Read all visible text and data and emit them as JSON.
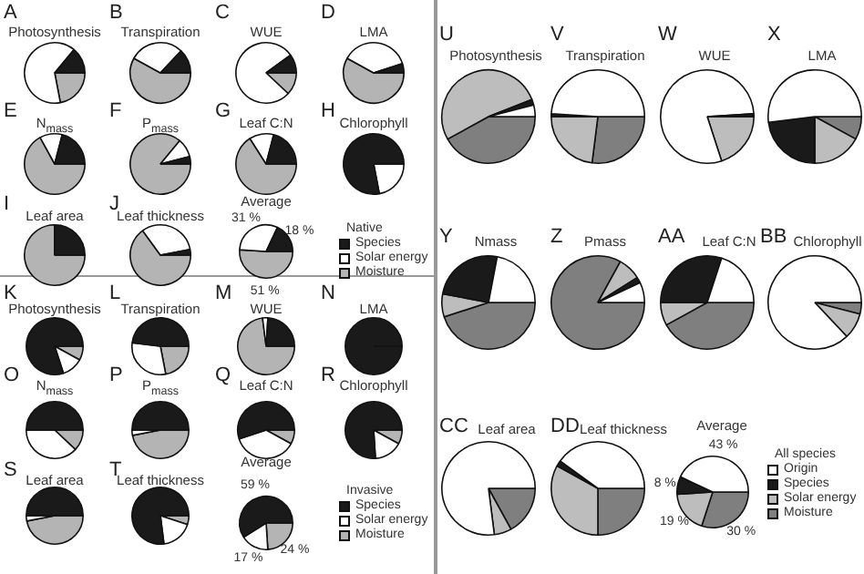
{
  "chart_data": [
    {
      "type": "pie",
      "title": "Photosynthesis",
      "annotations": [
        "A"
      ],
      "categories": [
        null,
        null,
        null
      ],
      "values": [
        22,
        64,
        14
      ],
      "colors": [
        "#b4b4b4",
        "#ffffff",
        "#1a1a1a"
      ]
    },
    {
      "type": "pie",
      "title": "Transpiration",
      "annotations": [
        "B"
      ],
      "categories": [
        null,
        null,
        null
      ],
      "values": [
        58,
        29,
        13
      ],
      "colors": [
        "#b4b4b4",
        "#ffffff",
        "#1a1a1a"
      ]
    },
    {
      "type": "pie",
      "title": "WUE",
      "annotations": [
        "C"
      ],
      "categories": [
        null,
        null,
        null
      ],
      "values": [
        12,
        78,
        10
      ],
      "colors": [
        "#b4b4b4",
        "#ffffff",
        "#1a1a1a"
      ]
    },
    {
      "type": "pie",
      "title": "LMA",
      "annotations": [
        "D"
      ],
      "categories": [
        null,
        null,
        null
      ],
      "values": [
        58,
        37,
        5
      ],
      "colors": [
        "#b4b4b4",
        "#ffffff",
        "#1a1a1a"
      ]
    },
    {
      "type": "pie",
      "title": "N$_{mass}$",
      "annotations": [
        "E"
      ],
      "categories": [
        null,
        null,
        null
      ],
      "values": [
        67,
        12,
        21
      ],
      "colors": [
        "#b4b4b4",
        "#ffffff",
        "#1a1a1a"
      ]
    },
    {
      "type": "pie",
      "title": "P$_{mass}$",
      "annotations": [
        "F"
      ],
      "categories": [
        null,
        null,
        null
      ],
      "values": [
        86,
        10,
        4
      ],
      "colors": [
        "#b4b4b4",
        "#ffffff",
        "#1a1a1a"
      ]
    },
    {
      "type": "pie",
      "title": "Leaf C:N",
      "annotations": [
        "G"
      ],
      "categories": [
        null,
        null,
        null
      ],
      "values": [
        66,
        13,
        21
      ],
      "colors": [
        "#b4b4b4",
        "#ffffff",
        "#1a1a1a"
      ]
    },
    {
      "type": "pie",
      "title": "Chlorophyll",
      "annotations": [
        "H"
      ],
      "categories": [
        null,
        null
      ],
      "values": [
        22,
        78
      ],
      "colors": [
        "#ffffff",
        "#1a1a1a"
      ]
    },
    {
      "type": "pie",
      "title": "Leaf area",
      "annotations": [
        "I"
      ],
      "categories": [
        null,
        null
      ],
      "values": [
        75,
        25
      ],
      "colors": [
        "#b4b4b4",
        "#1a1a1a"
      ]
    },
    {
      "type": "pie",
      "title": "Leaf thickness",
      "annotations": [
        "J"
      ],
      "categories": [
        null,
        null,
        null
      ],
      "values": [
        65,
        32,
        3
      ],
      "colors": [
        "#b4b4b4",
        "#ffffff",
        "#1a1a1a"
      ]
    },
    {
      "type": "pie",
      "title": "Average",
      "legend": "right",
      "legend_title": "Native",
      "categories": [
        "Moisture",
        "Solar energy",
        "Species"
      ],
      "values": [
        51,
        31,
        18
      ],
      "value_labels": [
        "51 %",
        "31 %",
        "18 %"
      ],
      "colors": [
        "#b4b4b4",
        "#ffffff",
        "#1a1a1a"
      ]
    },
    {
      "type": "pie",
      "title": "Photosynthesis",
      "annotations": [
        "K"
      ],
      "categories": [
        null,
        null,
        null
      ],
      "values": [
        8,
        12,
        80
      ],
      "colors": [
        "#b4b4b4",
        "#ffffff",
        "#1a1a1a"
      ]
    },
    {
      "type": "pie",
      "title": "Transpiration",
      "annotations": [
        "L"
      ],
      "categories": [
        null,
        null,
        null
      ],
      "values": [
        22,
        30,
        48
      ],
      "colors": [
        "#b4b4b4",
        "#ffffff",
        "#1a1a1a"
      ]
    },
    {
      "type": "pie",
      "title": "WUE",
      "annotations": [
        "M"
      ],
      "categories": [
        null,
        null,
        null
      ],
      "values": [
        73,
        3,
        24
      ],
      "colors": [
        "#b4b4b4",
        "#ffffff",
        "#1a1a1a"
      ]
    },
    {
      "type": "pie",
      "title": "LMA",
      "annotations": [
        "N"
      ],
      "categories": [
        null
      ],
      "values": [
        100
      ],
      "colors": [
        "#1a1a1a"
      ]
    },
    {
      "type": "pie",
      "title": "N$_{mass}$",
      "annotations": [
        "O"
      ],
      "categories": [
        null,
        null,
        null
      ],
      "values": [
        12,
        38,
        50
      ],
      "colors": [
        "#b4b4b4",
        "#ffffff",
        "#1a1a1a"
      ]
    },
    {
      "type": "pie",
      "title": "P$_{mass}$",
      "annotations": [
        "P"
      ],
      "categories": [
        null,
        null,
        null
      ],
      "values": [
        47,
        3,
        50
      ],
      "colors": [
        "#b4b4b4",
        "#ffffff",
        "#1a1a1a"
      ]
    },
    {
      "type": "pie",
      "title": "Leaf C:N",
      "annotations": [
        "Q"
      ],
      "categories": [
        null,
        null,
        null
      ],
      "values": [
        8,
        37,
        55
      ],
      "colors": [
        "#b4b4b4",
        "#ffffff",
        "#1a1a1a"
      ]
    },
    {
      "type": "pie",
      "title": "Chlorophyll",
      "annotations": [
        "R"
      ],
      "categories": [
        null,
        null,
        null
      ],
      "values": [
        8,
        16,
        76
      ],
      "colors": [
        "#b4b4b4",
        "#ffffff",
        "#1a1a1a"
      ]
    },
    {
      "type": "pie",
      "title": "Leaf area",
      "annotations": [
        "S"
      ],
      "categories": [
        null,
        null,
        null
      ],
      "values": [
        47,
        3,
        50
      ],
      "colors": [
        "#b4b4b4",
        "#ffffff",
        "#1a1a1a"
      ]
    },
    {
      "type": "pie",
      "title": "Leaf thickness",
      "annotations": [
        "T"
      ],
      "categories": [
        null,
        null,
        null
      ],
      "values": [
        5,
        18,
        77
      ],
      "colors": [
        "#b4b4b4",
        "#ffffff",
        "#1a1a1a"
      ]
    },
    {
      "type": "pie",
      "title": "Average",
      "legend": "right",
      "legend_title": "Invasive",
      "categories": [
        "Moisture",
        "Solar energy",
        "Species"
      ],
      "values": [
        24,
        17,
        59
      ],
      "value_labels": [
        "24 %",
        "17 %",
        "59 %"
      ],
      "colors": [
        "#b4b4b4",
        "#ffffff",
        "#1a1a1a"
      ]
    },
    {
      "type": "pie",
      "title": "Photosynthesis",
      "annotations": [
        "U"
      ],
      "categories": [
        null,
        null,
        null,
        null
      ],
      "values": [
        42,
        52,
        2,
        4
      ],
      "colors": [
        "#7f7f7f",
        "#bdbdbd",
        "#1a1a1a",
        "#ffffff"
      ]
    },
    {
      "type": "pie",
      "title": "Transpiration",
      "annotations": [
        "V"
      ],
      "categories": [
        null,
        null,
        null,
        null
      ],
      "values": [
        27,
        23,
        1,
        49
      ],
      "colors": [
        "#7f7f7f",
        "#bdbdbd",
        "#1a1a1a",
        "#ffffff"
      ]
    },
    {
      "type": "pie",
      "title": "WUE",
      "annotations": [
        "W"
      ],
      "categories": [
        null,
        null,
        null
      ],
      "values": [
        20,
        79,
        1
      ],
      "colors": [
        "#bdbdbd",
        "#ffffff",
        "#1a1a1a"
      ]
    },
    {
      "type": "pie",
      "title": "LMA",
      "annotations": [
        "X"
      ],
      "categories": [
        null,
        null,
        null,
        null
      ],
      "values": [
        8,
        17,
        23,
        52
      ],
      "colors": [
        "#7f7f7f",
        "#bdbdbd",
        "#1a1a1a",
        "#ffffff"
      ]
    },
    {
      "type": "pie",
      "title": "Nmass",
      "annotations": [
        "Y"
      ],
      "categories": [
        null,
        null,
        null,
        null
      ],
      "values": [
        45,
        8,
        25,
        22
      ],
      "colors": [
        "#7f7f7f",
        "#bdbdbd",
        "#1a1a1a",
        "#ffffff"
      ]
    },
    {
      "type": "pie",
      "title": "Pmass",
      "annotations": [
        "Z"
      ],
      "categories": [
        null,
        null,
        null,
        null
      ],
      "values": [
        83,
        8,
        2,
        7
      ],
      "colors": [
        "#7f7f7f",
        "#bdbdbd",
        "#1a1a1a",
        "#ffffff"
      ]
    },
    {
      "type": "pie",
      "title": "Leaf C:N",
      "annotations": [
        "AA"
      ],
      "categories": [
        null,
        null,
        null,
        null
      ],
      "values": [
        42,
        8,
        30,
        20
      ],
      "colors": [
        "#7f7f7f",
        "#bdbdbd",
        "#1a1a1a",
        "#ffffff"
      ]
    },
    {
      "type": "pie",
      "title": "Chlorophyll",
      "annotations": [
        "BB"
      ],
      "categories": [
        null,
        null,
        null
      ],
      "values": [
        4,
        9,
        87
      ],
      "colors": [
        "#7f7f7f",
        "#bdbdbd",
        "#ffffff"
      ]
    },
    {
      "type": "pie",
      "title": "Leaf area",
      "annotations": [
        "CC"
      ],
      "categories": [
        null,
        null,
        null
      ],
      "values": [
        17,
        6,
        77
      ],
      "colors": [
        "#7f7f7f",
        "#bdbdbd",
        "#ffffff"
      ]
    },
    {
      "type": "pie",
      "title": "Leaf thickness",
      "annotations": [
        "DD"
      ],
      "categories": [
        null,
        null,
        null,
        null
      ],
      "values": [
        25,
        33,
        2,
        40
      ],
      "colors": [
        "#7f7f7f",
        "#bdbdbd",
        "#1a1a1a",
        "#ffffff"
      ]
    },
    {
      "type": "pie",
      "title": "Average",
      "legend": "right",
      "legend_title": "All species",
      "categories": [
        "Moisture",
        "Solar energy",
        "Species",
        "Origin"
      ],
      "values": [
        30,
        19,
        8,
        43
      ],
      "value_labels": [
        "30 %",
        "19 %",
        "8 %",
        "43 %"
      ],
      "colors": [
        "#7f7f7f",
        "#bdbdbd",
        "#1a1a1a",
        "#ffffff"
      ]
    }
  ]
}
